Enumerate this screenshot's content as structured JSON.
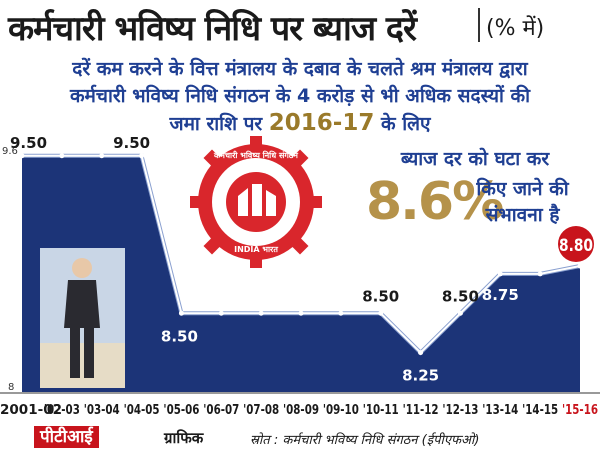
{
  "header": {
    "title": "कर्मचारी भविष्य निधि पर ब्याज दरें",
    "unit": "(% में)"
  },
  "description": {
    "line1": "दरें कम करने के वित्त मंत्रालय के दबाव के चलते श्रम मंत्रालय द्वारा",
    "line2": "कर्मचारी भविष्य निधि संगठन के 4 करोड़ से भी अधिक सदस्यों की",
    "line3_pre": "जमा राशि पर ",
    "line3_year": "2016-17",
    "line3_post": " के लिए",
    "line4": "ब्याज दर को घटा कर",
    "rate": "8.6%",
    "line5": "किए जाने की",
    "line6": "संभावना है"
  },
  "emblem": {
    "text_top": "कर्मचारी भविष्य निधि संगठन",
    "text_mid": "EMPLOYEES' PROVIDENT FUND ORGANISATION",
    "text_bottom": "INDIA भारत"
  },
  "footer": {
    "credit": "पीटीआई",
    "credit_suffix": "ग्राफिक",
    "source": "स्रोत : कर्मचारी भविष्य निधि संगठन (ईपीएफओ)"
  },
  "colors": {
    "area": "#1c3478",
    "line": "#ffffff",
    "highlight": "#c8141c",
    "title": "#1a1a1a",
    "text_blue": "#1f3f93",
    "gold": "#b5924a"
  },
  "chart_data": {
    "type": "area",
    "categories": [
      "2001-02",
      "'02-03",
      "'03-04",
      "'04-05",
      "'05-06",
      "'06-07",
      "'07-08",
      "'08-09",
      "'09-10",
      "'10-11",
      "'11-12",
      "'12-13",
      "'13-14",
      "'14-15",
      "'15-16"
    ],
    "values": [
      9.5,
      9.5,
      9.5,
      9.5,
      8.5,
      8.5,
      8.5,
      8.5,
      8.5,
      8.5,
      8.25,
      8.5,
      8.75,
      8.75,
      8.8
    ],
    "labels": [
      {
        "index": 0,
        "text": "9.50"
      },
      {
        "index": 3,
        "text": "9.50"
      },
      {
        "index": 4,
        "text": "8.50"
      },
      {
        "index": 9,
        "text": "8.50"
      },
      {
        "index": 10,
        "text": "8.25"
      },
      {
        "index": 11,
        "text": "8.50"
      },
      {
        "index": 12,
        "text": "8.75"
      },
      {
        "index": 14,
        "text": "8.80"
      }
    ],
    "y_ticks": [
      "9.6",
      "8"
    ],
    "ylim": [
      8,
      9.6
    ],
    "highlight_index": 14
  }
}
